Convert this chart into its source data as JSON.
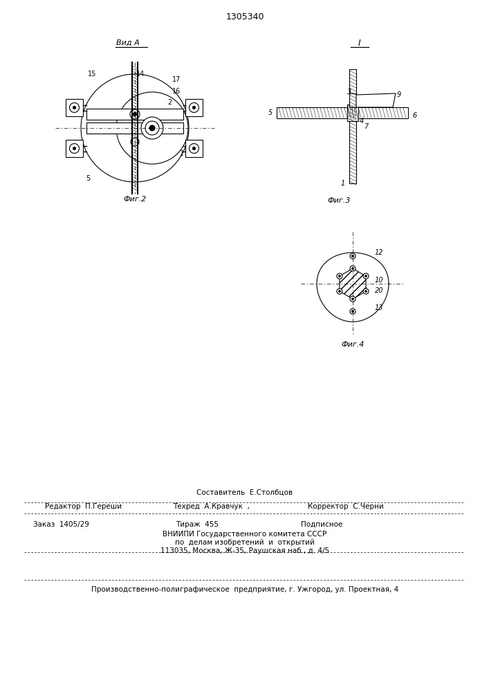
{
  "patent_number": "1305340",
  "bg_color": "#ffffff",
  "line_color": "#000000",
  "fig2_label": "Фиг.2",
  "fig3_label": "Фиг.3",
  "fig4_label": "Фиг.4",
  "vid_a_label": "Вид A",
  "fig1_label": "I",
  "footer_line1": "Составитель  Е.Столбцов",
  "footer_line2_left": "Редактор  П.Гереши",
  "footer_line2_mid": "Техред  А.Кравчук  ,",
  "footer_line2_right": "Корректор  С.Черни",
  "footer_line3_left": "Заказ  1405/29",
  "footer_line3_mid": "Тираж  455",
  "footer_line3_right": "Подписное",
  "footer_line4": "ВНИИПИ Государственного комитета СССР",
  "footer_line5": "по  делам изобретений  и  открытий",
  "footer_line6": "113035, Москва, Ж-35, Раушская наб., д. 4/5",
  "footer_line7": "Производственно-полиграфическое  предприятие, г. Ужгород, ул. Проектная, 4"
}
